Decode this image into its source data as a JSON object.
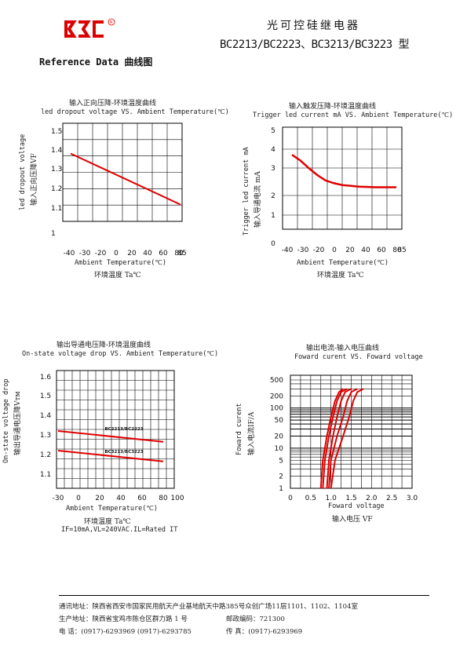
{
  "header": {
    "logo_text": "BC",
    "title_cn": "光可控硅继电器",
    "models": "BC2213/BC2223、BC3213/BC3223 型"
  },
  "section_title": "Reference Data 曲线图",
  "charts": {
    "c1": {
      "title_cn": "输入正向压降-环境温度曲线",
      "title_en": "led dropout voltage VS.  Ambient Temperature(℃)",
      "ylabel_en": "led dropout voltage",
      "ylabel_cn": "输入正向压降VF",
      "xlabel_en": "Ambient Temperature(℃)",
      "xlabel_cn": "环境温度    Ta℃"
    },
    "c2": {
      "title_cn": "输入触发压降-环境温度曲线",
      "title_en": "Trigger led current mA VS.  Ambient Temperature(℃)",
      "ylabel_en": "Trigger led current mA",
      "ylabel_cn": "输入导通电流 mA",
      "xlabel_en": "Ambient Temperature(℃)",
      "xlabel_cn": "环境温度    Ta℃"
    },
    "c3": {
      "title_cn": "输出导通电压降-环境温度曲线",
      "title_en": "On-state voltage drop  VS.  Ambient Temperature(℃)",
      "ylabel_en": "On-state voltage drop",
      "ylabel_cn": "输出导通电压降Vтм",
      "xlabel_en": "Ambient Temperature(℃)",
      "xlabel_cn": "环境温度    Ta℃",
      "note": "IF=10mA,VL=240VAC.IL=Rated  IT"
    },
    "c4": {
      "title_cn": "输出电流-输入电压曲线",
      "title_en": "Foward curent VS.  Foward voltage",
      "ylabel_en": "Foward curent",
      "ylabel_cn": "输入电流IF/A",
      "xlabel_en": "Foward voltage",
      "xlabel_cn": "输入电压 VF"
    }
  },
  "chart_data": [
    {
      "type": "line",
      "x": [
        -30,
        85
      ],
      "series": [
        {
          "values": [
            1.39,
            1.14
          ]
        }
      ],
      "xticks": [
        "-40",
        "-30",
        "-20",
        "0",
        "20",
        "40",
        "60",
        "80",
        "85"
      ],
      "yticks": [
        "1",
        "1.1",
        "1.2",
        "1.3",
        "1.4",
        "1.5"
      ],
      "xlim": [
        -40,
        85
      ],
      "ylim": [
        1.0,
        1.5
      ],
      "color": "#e00000"
    },
    {
      "type": "line",
      "x": [
        -40,
        -30,
        -20,
        -10,
        0,
        10,
        20,
        40,
        60,
        85
      ],
      "series": [
        {
          "values": [
            3.7,
            3.4,
            3.0,
            2.75,
            2.55,
            2.45,
            2.38,
            2.32,
            2.3,
            2.3
          ]
        }
      ],
      "xticks": [
        "-40",
        "-30",
        "-20",
        "0",
        "20",
        "40",
        "60",
        "80",
        "85"
      ],
      "yticks": [
        "0",
        "1",
        "2",
        "3",
        "4",
        "5"
      ],
      "xlim": [
        -40,
        85
      ],
      "ylim": [
        0,
        5
      ],
      "color": "#e00000"
    },
    {
      "type": "line",
      "x": [
        -30,
        80
      ],
      "series": [
        {
          "name": "BC2213/BC2223",
          "values": [
            1.32,
            1.265
          ]
        },
        {
          "name": "BC3213/BC3223",
          "values": [
            1.22,
            1.165
          ]
        }
      ],
      "xticks": [
        "-30",
        "0",
        "20",
        "40",
        "60",
        "80",
        "100"
      ],
      "yticks": [
        "1.1",
        "1.2",
        "1.3",
        "1.4",
        "1.5",
        "1.6"
      ],
      "xlim": [
        -30,
        100
      ],
      "ylim": [
        1.05,
        1.6
      ],
      "color": "#e00000"
    },
    {
      "type": "line",
      "xticks": [
        "0",
        "0.5",
        "1.0",
        "1.5",
        "2.0",
        "2.5",
        "3.0"
      ],
      "yticks": [
        "1",
        "2",
        "5",
        "10",
        "20",
        "50",
        "100",
        "200",
        "500"
      ],
      "xlim": [
        0,
        3.0
      ],
      "scale_y": "log",
      "series": [
        {
          "x": [
            0.75,
            0.8,
            0.9,
            1.0,
            1.1,
            1.2,
            1.3
          ],
          "values": [
            1,
            5,
            20,
            60,
            150,
            250,
            300
          ]
        },
        {
          "x": [
            0.8,
            0.85,
            0.95,
            1.05,
            1.15,
            1.25,
            1.4
          ],
          "values": [
            1,
            5,
            20,
            60,
            150,
            250,
            300
          ]
        },
        {
          "x": [
            0.9,
            0.95,
            1.05,
            1.15,
            1.25,
            1.35,
            1.5
          ],
          "values": [
            1,
            5,
            20,
            60,
            150,
            250,
            300
          ]
        },
        {
          "x": [
            0.95,
            1.0,
            1.15,
            1.3,
            1.4,
            1.5,
            1.65
          ],
          "values": [
            1,
            5,
            20,
            60,
            150,
            250,
            300
          ]
        },
        {
          "x": [
            1.0,
            1.1,
            1.3,
            1.45,
            1.55,
            1.65,
            1.8
          ],
          "values": [
            1,
            5,
            20,
            60,
            150,
            250,
            300
          ]
        }
      ],
      "color": "#e00000"
    }
  ],
  "footer": {
    "line1": "通讯地址：陕西省西安市国家民用航天产业基地航天中路385号众创广场11层1101、1102、1104室",
    "line2_left": "生产地址：陕西省宝鸡市陈仓区群力路 1 号",
    "line2_right": "邮政编码：721300",
    "line3_left": "电     话：(0917)-6293969   (0917)-6293785",
    "line3_right": "传     真：(0917)-6293969"
  }
}
